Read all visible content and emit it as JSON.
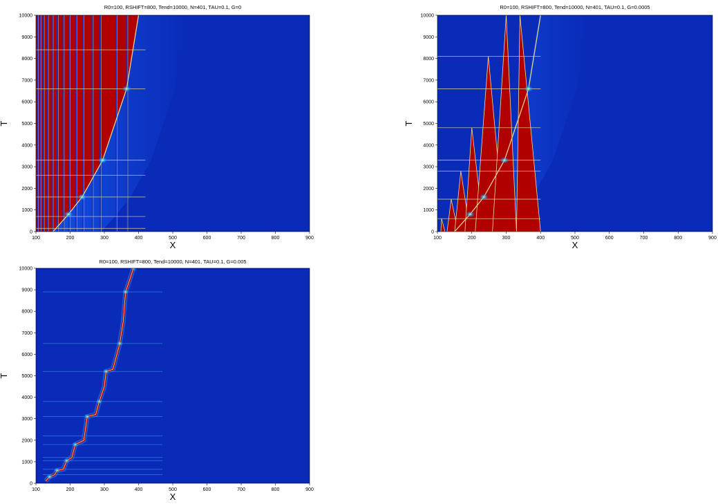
{
  "figure": {
    "panels": [
      {
        "title": "R0=100, RSHIFT=800, Tend=10000, N=401, TAU=0.1, G=0",
        "xlabel": "X",
        "ylabel": "T"
      },
      {
        "title": "R0=100, RSHIFT=800, Tend=10000, N=401, TAU=0.1, G=0.0005",
        "xlabel": "X",
        "ylabel": "T"
      },
      {
        "title": "R0=100, RSHIFT=800, Tend=10000, N=401, TAU=0.1, G=0.005",
        "xlabel": "X",
        "ylabel": "T"
      }
    ]
  },
  "chart_data": [
    {
      "type": "heatmap",
      "title": "R0=100, RSHIFT=800, Tend=10000, N=401, TAU=0.1, G=0",
      "xlabel": "X",
      "ylabel": "T",
      "xlim": [
        100,
        900
      ],
      "ylim": [
        0,
        10000
      ],
      "xticks": [
        100,
        200,
        300,
        400,
        500,
        600,
        700,
        800,
        900
      ],
      "yticks": [
        0,
        1000,
        2000,
        3000,
        4000,
        5000,
        6000,
        7000,
        8000,
        9000,
        10000
      ],
      "colormap": "jet",
      "colors": {
        "background": "#0a2ab8",
        "region": "#b00000",
        "front": "#f0e090"
      },
      "front_x_at_t": {
        "t": [
          0,
          800,
          1600,
          3300,
          6600,
          10000
        ],
        "x": [
          150,
          195,
          235,
          295,
          365,
          400
        ]
      },
      "vertical_lines_x": [
        104,
        112,
        122,
        134,
        148,
        163,
        180,
        197,
        217,
        238,
        265,
        288,
        335,
        366
      ],
      "horizontal_event_t": [
        150,
        700,
        1600,
        2600,
        3300,
        6600,
        8400
      ],
      "hot_spots": [
        {
          "x": 195,
          "t": 800
        },
        {
          "x": 235,
          "t": 1600
        },
        {
          "x": 295,
          "t": 3300
        },
        {
          "x": 365,
          "t": 6600
        }
      ]
    },
    {
      "type": "heatmap",
      "title": "R0=100, RSHIFT=800, Tend=10000, N=401, TAU=0.1, G=0.0005",
      "xlabel": "X",
      "ylabel": "T",
      "xlim": [
        100,
        900
      ],
      "ylim": [
        0,
        10000
      ],
      "xticks": [
        100,
        200,
        300,
        400,
        500,
        600,
        700,
        800,
        900
      ],
      "yticks": [
        0,
        1000,
        2000,
        3000,
        4000,
        5000,
        6000,
        7000,
        8000,
        9000,
        10000
      ],
      "colormap": "jet",
      "colors": {
        "background": "#0a2ab8",
        "region": "#b00000",
        "front": "#f0e090"
      },
      "front_x_at_t": {
        "t": [
          0,
          800,
          1600,
          3300,
          6600,
          10000
        ],
        "x": [
          150,
          195,
          235,
          295,
          365,
          400
        ]
      },
      "lobes": [
        {
          "x_left": [
            110,
            140
          ],
          "x_peak": 112,
          "t_peak": 600,
          "x_right": 122
        },
        {
          "x_left": [
            128,
            150
          ],
          "x_peak": 140,
          "t_peak": 1500,
          "x_right": 160
        },
        {
          "x_left": [
            150,
            170
          ],
          "x_peak": 168,
          "t_peak": 2800,
          "x_right": 195
        },
        {
          "x_left": [
            180,
            200
          ],
          "x_peak": 200,
          "t_peak": 4800,
          "x_right": 235
        },
        {
          "x_left": [
            210,
            245
          ],
          "x_peak": 248,
          "t_peak": 8100,
          "x_right": 295
        },
        {
          "x_left": [
            260,
            300
          ],
          "x_peak": 300,
          "t_peak": 10000,
          "x_right": 330
        },
        {
          "x_left": [
            330,
            365
          ],
          "x_peak": 340,
          "t_peak": 10000,
          "x_right": 400
        }
      ],
      "horizontal_event_t": [
        600,
        1500,
        2800,
        3300,
        4800,
        6600,
        8100
      ],
      "hot_spots": [
        {
          "x": 195,
          "t": 800
        },
        {
          "x": 235,
          "t": 1600
        },
        {
          "x": 295,
          "t": 3300
        },
        {
          "x": 365,
          "t": 6600
        }
      ]
    },
    {
      "type": "heatmap",
      "title": "R0=100, RSHIFT=800, Tend=10000, N=401, TAU=0.1, G=0.005",
      "xlabel": "X",
      "ylabel": "T",
      "xlim": [
        100,
        900
      ],
      "ylim": [
        0,
        10000
      ],
      "xticks": [
        100,
        200,
        300,
        400,
        500,
        600,
        700,
        800,
        900
      ],
      "yticks": [
        0,
        1000,
        2000,
        3000,
        4000,
        5000,
        6000,
        7000,
        8000,
        9000,
        10000
      ],
      "colormap": "jet",
      "colors": {
        "background": "#0a2ab8",
        "region": "#b00000",
        "front": "#f0e090"
      },
      "zigzag_front": [
        {
          "x": 128,
          "t": 100
        },
        {
          "x": 140,
          "t": 300
        },
        {
          "x": 155,
          "t": 400
        },
        {
          "x": 162,
          "t": 600
        },
        {
          "x": 180,
          "t": 650
        },
        {
          "x": 190,
          "t": 1050
        },
        {
          "x": 205,
          "t": 1200
        },
        {
          "x": 215,
          "t": 1800
        },
        {
          "x": 240,
          "t": 2000
        },
        {
          "x": 250,
          "t": 3100
        },
        {
          "x": 275,
          "t": 3200
        },
        {
          "x": 285,
          "t": 3800
        },
        {
          "x": 300,
          "t": 4500
        },
        {
          "x": 305,
          "t": 5200
        },
        {
          "x": 325,
          "t": 5300
        },
        {
          "x": 345,
          "t": 6500
        },
        {
          "x": 355,
          "t": 7500
        },
        {
          "x": 362,
          "t": 8900
        },
        {
          "x": 375,
          "t": 9500
        },
        {
          "x": 385,
          "t": 10000
        }
      ],
      "horizontal_event_t": [
        400,
        650,
        1050,
        1200,
        1800,
        2200,
        3100,
        3800,
        5200,
        6500,
        8900
      ]
    }
  ]
}
